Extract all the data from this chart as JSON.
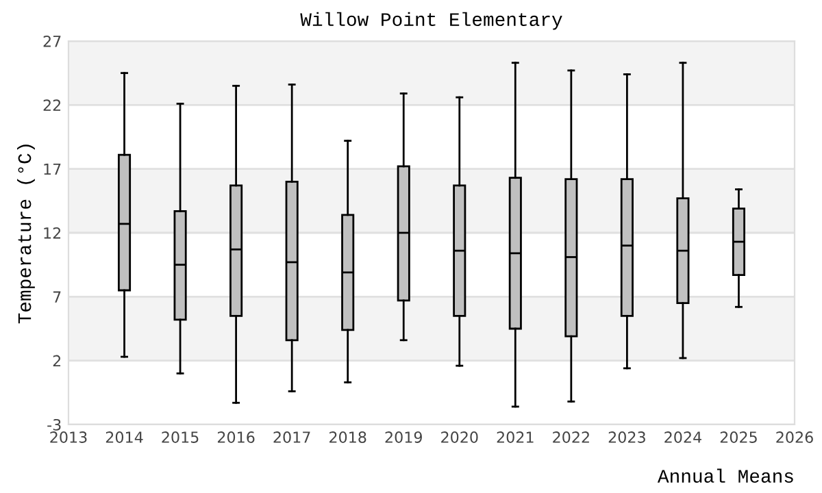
{
  "chart_data": {
    "type": "box",
    "title": "Willow Point Elementary",
    "xlabel": "Annual Means",
    "ylabel": "Temperature (°C)",
    "x": [
      2014,
      2015,
      2016,
      2017,
      2018,
      2019,
      2020,
      2021,
      2022,
      2023,
      2024,
      2025
    ],
    "color": "#c0c0c0",
    "boxes": [
      {
        "low": 2.3,
        "q1": 7.5,
        "median": 12.7,
        "q3": 18.1,
        "high": 24.5
      },
      {
        "low": 1.0,
        "q1": 5.2,
        "median": 9.5,
        "q3": 13.7,
        "high": 22.1
      },
      {
        "low": -1.3,
        "q1": 5.5,
        "median": 10.7,
        "q3": 15.7,
        "high": 23.5
      },
      {
        "low": -0.4,
        "q1": 3.6,
        "median": 9.7,
        "q3": 16.0,
        "high": 23.6
      },
      {
        "low": 0.3,
        "q1": 4.4,
        "median": 8.9,
        "q3": 13.4,
        "high": 19.2
      },
      {
        "low": 3.6,
        "q1": 6.7,
        "median": 12.0,
        "q3": 17.2,
        "high": 22.9
      },
      {
        "low": 1.6,
        "q1": 5.5,
        "median": 10.6,
        "q3": 15.7,
        "high": 22.6
      },
      {
        "low": -1.6,
        "q1": 4.5,
        "median": 10.4,
        "q3": 16.3,
        "high": 25.3
      },
      {
        "low": -1.2,
        "q1": 3.9,
        "median": 10.1,
        "q3": 16.2,
        "high": 24.7
      },
      {
        "low": 1.4,
        "q1": 5.5,
        "median": 11.0,
        "q3": 16.2,
        "high": 24.4
      },
      {
        "low": 2.2,
        "q1": 6.5,
        "median": 10.6,
        "q3": 14.7,
        "high": 25.3
      },
      {
        "low": 6.2,
        "q1": 8.7,
        "median": 11.3,
        "q3": 13.9,
        "high": 15.4
      }
    ],
    "xlim": [
      2013,
      2026
    ],
    "xticks": [
      2013,
      2014,
      2015,
      2016,
      2017,
      2018,
      2019,
      2020,
      2021,
      2022,
      2023,
      2024,
      2025,
      2026
    ],
    "ylim": [
      -3,
      27
    ],
    "yticks": [
      -3,
      2,
      7,
      12,
      17,
      22,
      27
    ],
    "grid": "y"
  }
}
